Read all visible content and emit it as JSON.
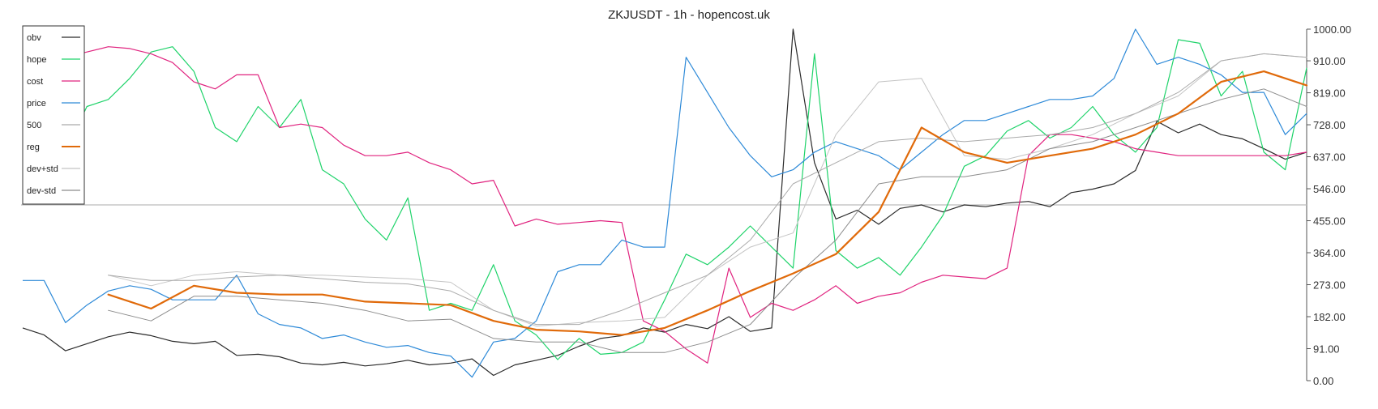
{
  "chart_data": {
    "type": "line",
    "title": "ZKJUSDT - 1h - hopencost.uk",
    "ylim": [
      0,
      1000
    ],
    "yticks": [
      "1000.00",
      "910.00",
      "819.00",
      "728.00",
      "637.00",
      "546.00",
      "455.00",
      "364.00",
      "273.00",
      "182.00",
      "91.00",
      "0.00"
    ],
    "hline": 500,
    "grid": false,
    "legend_position": "top-left",
    "x": [
      0,
      5,
      10,
      15,
      20,
      25,
      30,
      35,
      40,
      45,
      50,
      55,
      60,
      65,
      70,
      75,
      80,
      85,
      90,
      95,
      100,
      105,
      110,
      115,
      120,
      125,
      130,
      135,
      140,
      145,
      150,
      155,
      160,
      165,
      170,
      175,
      180,
      185,
      190,
      195,
      200,
      205,
      210,
      215,
      220,
      225,
      230,
      235,
      240,
      245,
      250,
      255,
      260,
      265,
      270,
      275,
      280,
      285,
      290,
      295,
      300
    ],
    "series": [
      {
        "name": "obv",
        "color": "#2b2b2b",
        "width": 1.2,
        "values": [
          150,
          130,
          85,
          105,
          125,
          138,
          128,
          112,
          105,
          112,
          72,
          75,
          68,
          50,
          45,
          52,
          42,
          48,
          58,
          45,
          50,
          62,
          15,
          45,
          58,
          72,
          98,
          120,
          128,
          150,
          138,
          160,
          148,
          182,
          140,
          150,
          1000,
          620,
          460,
          485,
          445,
          490,
          500,
          480,
          500,
          495,
          505,
          510,
          495,
          535,
          545,
          560,
          598,
          738,
          705,
          730,
          700,
          688,
          660,
          630,
          650
        ]
      },
      {
        "name": "hope",
        "color": "#1fd36a",
        "width": 1.2,
        "values": [
          720,
          730,
          650,
          780,
          800,
          860,
          935,
          950,
          880,
          720,
          680,
          780,
          720,
          800,
          600,
          560,
          460,
          400,
          520,
          200,
          220,
          200,
          330,
          170,
          130,
          60,
          120,
          75,
          80,
          110,
          230,
          360,
          330,
          380,
          440,
          380,
          320,
          930,
          370,
          320,
          350,
          300,
          380,
          470,
          610,
          640,
          710,
          740,
          690,
          720,
          780,
          700,
          650,
          720,
          970,
          960,
          810,
          880,
          650,
          600,
          890
        ]
      },
      {
        "name": "cost",
        "color": "#e0237f",
        "width": 1.2,
        "values": [
          880,
          890,
          920,
          935,
          950,
          945,
          930,
          905,
          850,
          830,
          870,
          870,
          720,
          730,
          720,
          670,
          640,
          640,
          650,
          620,
          600,
          560,
          570,
          440,
          460,
          445,
          450,
          455,
          450,
          170,
          140,
          90,
          50,
          320,
          180,
          220,
          200,
          230,
          270,
          220,
          240,
          250,
          280,
          300,
          295,
          290,
          320,
          640,
          700,
          700,
          690,
          680,
          660,
          650,
          640,
          640,
          640,
          640,
          640,
          640,
          650
        ]
      },
      {
        "name": "price",
        "color": "#2e8ad8",
        "width": 1.2,
        "values": [
          285,
          285,
          165,
          215,
          255,
          270,
          260,
          230,
          230,
          230,
          300,
          190,
          160,
          150,
          120,
          130,
          110,
          95,
          100,
          80,
          70,
          10,
          110,
          120,
          170,
          310,
          330,
          330,
          400,
          380,
          380,
          920,
          820,
          720,
          640,
          580,
          600,
          650,
          680,
          660,
          640,
          600,
          650,
          700,
          740,
          740,
          760,
          780,
          800,
          800,
          810,
          860,
          1000,
          900,
          920,
          900,
          870,
          820,
          820,
          700,
          760
        ]
      },
      {
        "name": "500",
        "color": "#aaaaaa",
        "width": 1.0,
        "values": [
          null,
          null,
          null,
          null,
          null,
          null,
          null,
          null,
          null,
          null,
          null,
          null,
          null,
          null,
          null,
          null,
          null,
          null,
          null,
          null,
          null,
          null,
          null,
          null,
          null,
          null,
          null,
          null,
          null,
          null,
          null,
          null,
          null,
          null,
          null,
          null,
          null,
          null,
          null,
          null,
          null,
          null,
          null,
          null,
          null,
          null,
          null,
          null,
          null,
          null,
          null,
          null,
          null,
          null,
          null,
          null,
          null,
          null,
          null,
          null,
          null
        ]
      },
      {
        "name": "reg",
        "color": "#e06a0a",
        "width": 2.2,
        "values": [
          null,
          null,
          null,
          null,
          null,
          null,
          null,
          null,
          null,
          null,
          null,
          null,
          null,
          null,
          null,
          null,
          null,
          null,
          null,
          null,
          null,
          null,
          null,
          null,
          null,
          null,
          null,
          null,
          null,
          null,
          null,
          null,
          null,
          null,
          null,
          null,
          null,
          null,
          null,
          null,
          null,
          null,
          null,
          null,
          null,
          null,
          null,
          null,
          null,
          null,
          null,
          null,
          null,
          null,
          null,
          null,
          null,
          null,
          null,
          null,
          null
        ]
      },
      {
        "name": "dev+std",
        "color": "#c4c4c4",
        "width": 1.0,
        "values": [
          null,
          null,
          null,
          null,
          null,
          null,
          null,
          null,
          null,
          null,
          null,
          null,
          null,
          null,
          null,
          null,
          null,
          null,
          null,
          null,
          null,
          null,
          null,
          null,
          null,
          null,
          null,
          null,
          null,
          null,
          null,
          null,
          null,
          null,
          null,
          null,
          null,
          null,
          null,
          null,
          null,
          null,
          null,
          null,
          null,
          null,
          null,
          null,
          null,
          null,
          null,
          null,
          null,
          null,
          null,
          null,
          null,
          null,
          null,
          null,
          null
        ]
      },
      {
        "name": "dev-std",
        "color": "#8c8c8c",
        "width": 1.0,
        "values": [
          null,
          null,
          null,
          null,
          null,
          null,
          null,
          null,
          null,
          null,
          null,
          null,
          null,
          null,
          null,
          null,
          null,
          null,
          null,
          null,
          null,
          null,
          null,
          null,
          null,
          null,
          null,
          null,
          null,
          null,
          null,
          null,
          null,
          null,
          null,
          null,
          null,
          null,
          null,
          null,
          null,
          null,
          null,
          null,
          null,
          null,
          null,
          null,
          null,
          null,
          null,
          null,
          null,
          null,
          null,
          null,
          null,
          null,
          null,
          null,
          null
        ]
      }
    ],
    "smooth_series": {
      "500": {
        "x": [
          20,
          30,
          40,
          50,
          60,
          70,
          80,
          90,
          100,
          110,
          120,
          130,
          140,
          150,
          160,
          170,
          180,
          190,
          200,
          210,
          220,
          230,
          240,
          250,
          260,
          270,
          280,
          290,
          300
        ],
        "y": [
          300,
          285,
          285,
          295,
          300,
          290,
          280,
          275,
          255,
          200,
          160,
          160,
          200,
          250,
          300,
          400,
          560,
          620,
          680,
          690,
          680,
          690,
          700,
          720,
          760,
          820,
          910,
          930,
          920
        ]
      },
      "reg": {
        "x": [
          20,
          30,
          40,
          50,
          60,
          70,
          80,
          90,
          100,
          110,
          120,
          130,
          140,
          150,
          160,
          170,
          180,
          190,
          200,
          210,
          220,
          230,
          240,
          250,
          260,
          270,
          280,
          290,
          300
        ],
        "y": [
          245,
          205,
          270,
          250,
          245,
          245,
          225,
          220,
          215,
          170,
          145,
          140,
          130,
          150,
          200,
          255,
          305,
          360,
          480,
          720,
          650,
          620,
          640,
          660,
          700,
          760,
          850,
          880,
          840
        ]
      },
      "dev+std": {
        "x": [
          20,
          30,
          40,
          50,
          60,
          70,
          80,
          90,
          100,
          110,
          120,
          130,
          140,
          150,
          160,
          170,
          180,
          190,
          200,
          210,
          220,
          230,
          240,
          250,
          260,
          270,
          280,
          290,
          300
        ],
        "y": [
          300,
          270,
          300,
          310,
          300,
          300,
          295,
          290,
          280,
          200,
          155,
          165,
          170,
          180,
          300,
          380,
          420,
          700,
          850,
          860,
          640,
          630,
          660,
          700,
          760,
          810,
          910,
          930,
          920
        ]
      },
      "dev-std": {
        "x": [
          20,
          30,
          40,
          50,
          60,
          70,
          80,
          90,
          100,
          110,
          120,
          130,
          140,
          150,
          160,
          170,
          180,
          190,
          200,
          210,
          220,
          230,
          240,
          250,
          260,
          270,
          280,
          290,
          300
        ],
        "y": [
          200,
          170,
          240,
          240,
          230,
          220,
          200,
          170,
          175,
          120,
          110,
          110,
          80,
          80,
          110,
          160,
          290,
          400,
          560,
          580,
          580,
          600,
          660,
          680,
          720,
          760,
          800,
          830,
          780
        ]
      }
    }
  },
  "legend": [
    {
      "label": "obv",
      "color": "#2b2b2b"
    },
    {
      "label": "hope",
      "color": "#1fd36a"
    },
    {
      "label": "cost",
      "color": "#e0237f"
    },
    {
      "label": "price",
      "color": "#2e8ad8"
    },
    {
      "label": "500",
      "color": "#aaaaaa"
    },
    {
      "label": "reg",
      "color": "#e06a0a"
    },
    {
      "label": "dev+std",
      "color": "#c4c4c4"
    },
    {
      "label": "dev-std",
      "color": "#8c8c8c"
    }
  ]
}
